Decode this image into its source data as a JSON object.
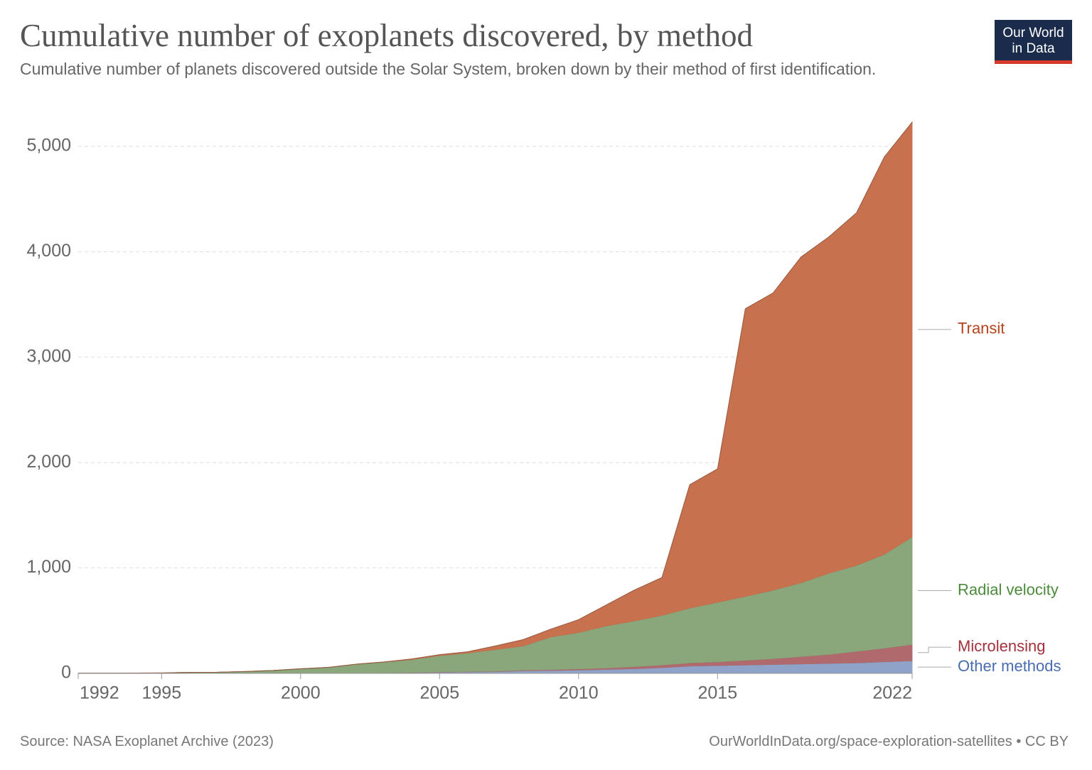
{
  "chart_data": {
    "type": "stacked_area",
    "title": "Cumulative number of exoplanets discovered, by method",
    "subtitle": "Cumulative number of planets discovered outside the Solar System, broken down by their method of first identification.",
    "logo": [
      "Our World",
      "in Data"
    ],
    "source": "Source: NASA Exoplanet Archive (2023)",
    "license": "OurWorldInData.org/space-exploration-satellites • CC BY",
    "x": [
      1992,
      1993,
      1994,
      1995,
      1996,
      1997,
      1998,
      1999,
      2000,
      2001,
      2002,
      2003,
      2004,
      2005,
      2006,
      2007,
      2008,
      2009,
      2010,
      2011,
      2012,
      2013,
      2014,
      2015,
      2016,
      2017,
      2018,
      2019,
      2020,
      2021,
      2022
    ],
    "xlim": [
      1992,
      2022
    ],
    "xticks": [
      1992,
      1995,
      2000,
      2005,
      2010,
      2015,
      2022
    ],
    "ylim": [
      0,
      5000
    ],
    "yticks": [
      0,
      {
        "value": 1000,
        "label": "1,000"
      },
      {
        "value": 2000,
        "label": "2,000"
      },
      {
        "value": 3000,
        "label": "3,000"
      },
      {
        "value": 4000,
        "label": "4,000"
      },
      {
        "value": 5000,
        "label": "5,000"
      }
    ],
    "grid": true,
    "series": [
      {
        "name": "Other methods",
        "color": "#8fa3c8",
        "label_color": "#4a6cb1",
        "values": [
          2,
          2,
          3,
          3,
          3,
          3,
          4,
          4,
          4,
          5,
          5,
          6,
          8,
          11,
          14,
          17,
          25,
          28,
          32,
          38,
          45,
          55,
          70,
          75,
          80,
          85,
          90,
          95,
          100,
          110,
          120
        ]
      },
      {
        "name": "Microlensing",
        "color": "#b06a6e",
        "label_color": "#a2323c",
        "values": [
          0,
          0,
          0,
          0,
          0,
          0,
          0,
          0,
          0,
          0,
          0,
          0,
          1,
          3,
          4,
          4,
          7,
          8,
          11,
          13,
          20,
          25,
          30,
          35,
          45,
          55,
          70,
          85,
          110,
          130,
          155
        ]
      },
      {
        "name": "Radial velocity",
        "color": "#8aa77b",
        "label_color": "#4c8a3b",
        "values": [
          0,
          0,
          0,
          1,
          7,
          8,
          14,
          24,
          40,
          52,
          82,
          102,
          122,
          155,
          176,
          205,
          228,
          310,
          344,
          400,
          433,
          470,
          520,
          565,
          605,
          650,
          700,
          770,
          815,
          890,
          1020
        ]
      },
      {
        "name": "Transit",
        "color": "#c8714e",
        "label_color": "#b5431c",
        "values": [
          0,
          0,
          0,
          0,
          0,
          0,
          0,
          0,
          0,
          0,
          1,
          1,
          6,
          9,
          11,
          34,
          60,
          74,
          123,
          199,
          292,
          360,
          1170,
          1265,
          2730,
          2820,
          3090,
          3190,
          3345,
          3770,
          3935
        ]
      }
    ]
  }
}
